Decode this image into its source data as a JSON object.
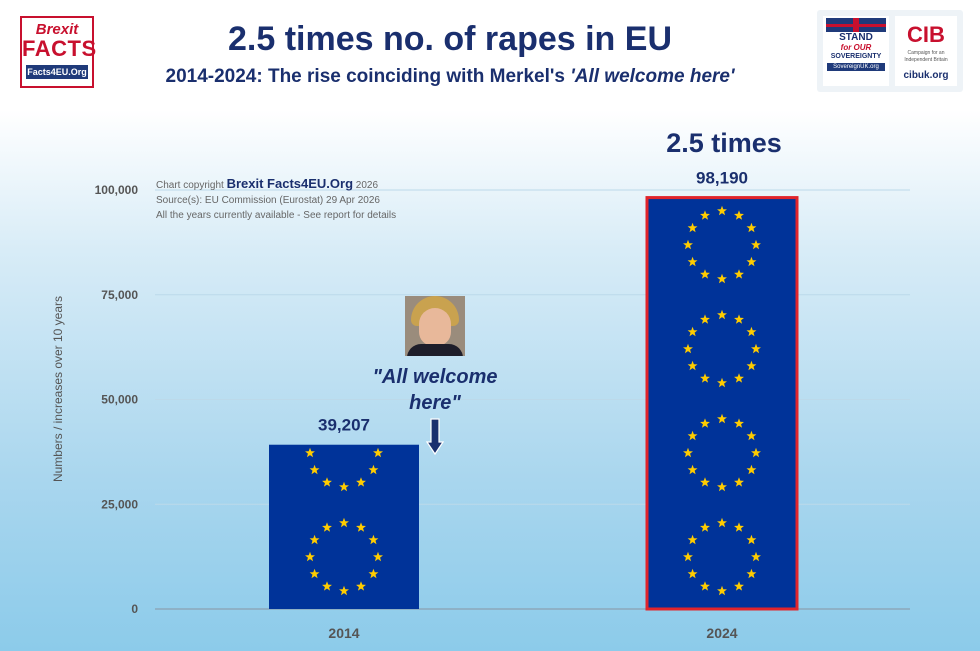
{
  "header": {
    "title": "2.5 times no. of rapes in EU",
    "subtitle_prefix": "2014-2024: The rise coinciding with Merkel's ",
    "subtitle_emphasis": "'All welcome here'"
  },
  "logo_left": {
    "line1": "Brexit",
    "line2": "FACTS",
    "line3": "Facts4EU.Org"
  },
  "logos_right": {
    "sovereign": {
      "line1": "STAND",
      "line2": "for OUR",
      "line3": "SOVEREIGNTY",
      "url": "SovereignUK.org"
    },
    "cib": {
      "mark": "CIB",
      "tagline": "Campaign for an Independent Britain",
      "url": "cibuk.org"
    }
  },
  "credit": {
    "prefix": "Chart copyright ",
    "brand": "Brexit Facts4EU.Org",
    "year": " 2026",
    "source": "Source(s): EU Commission (Eurostat) 29 Apr 2026",
    "note": "All the years currently available - See report for details"
  },
  "annotations": {
    "times": "2.5 times",
    "quote_line1": "\"All welcome",
    "quote_line2": "here\""
  },
  "colors": {
    "eu_blue": "#003399",
    "eu_star": "#ffcc00",
    "highlight_border": "#e0242b",
    "title_navy": "#1a2f6e"
  },
  "chart_data": {
    "type": "bar",
    "categories": [
      "2014",
      "2024"
    ],
    "values": [
      39207,
      98190
    ],
    "data_labels": [
      "39,207",
      "98,190"
    ],
    "ylabel": "Numbers / increases over 10 years",
    "xlabel": "",
    "ylim": [
      0,
      100000
    ],
    "yticks": [
      0,
      25000,
      50000,
      75000,
      100000
    ],
    "ytick_labels": [
      "0",
      "25,000",
      "50,000",
      "75,000",
      "100,000"
    ],
    "grid": true,
    "legend": "none"
  }
}
